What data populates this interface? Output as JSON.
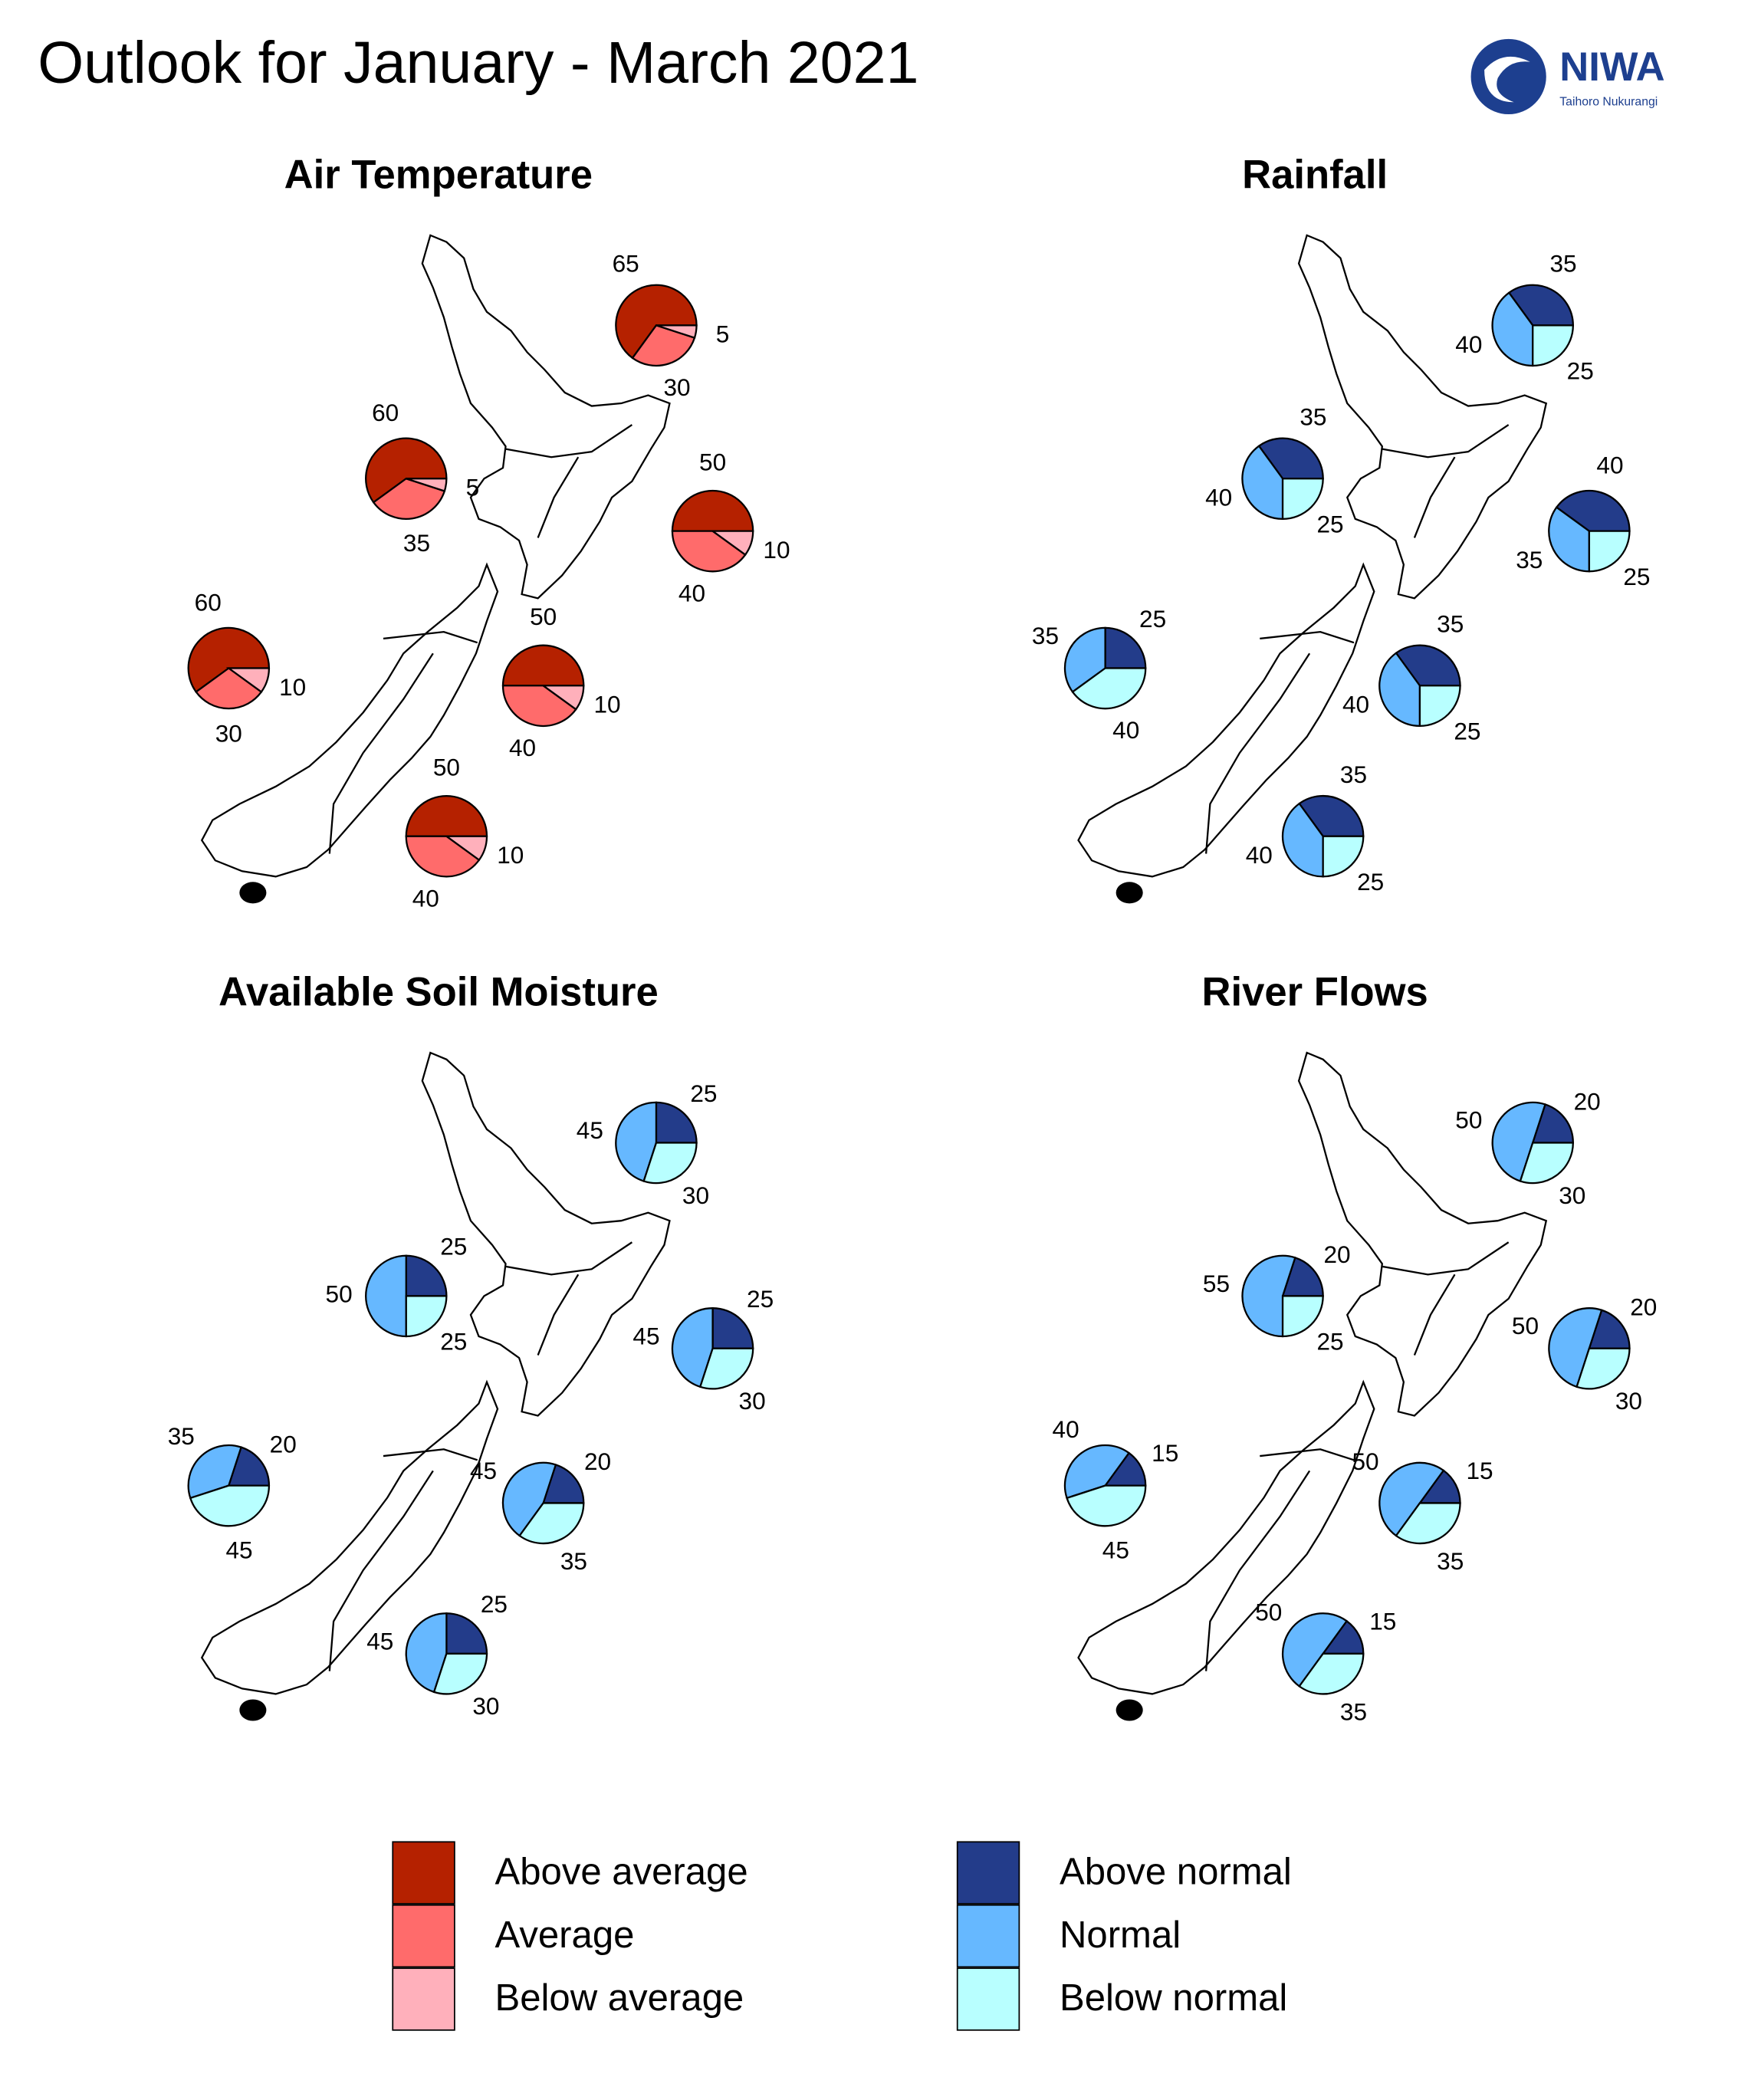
{
  "title": "Outlook for January - March 2021",
  "logo": {
    "name": "NIWA",
    "tagline": "Taihoro Nukurangi"
  },
  "legend": [
    {
      "name": "Above average",
      "color": "#b52100"
    },
    {
      "name": "Average",
      "color": "#ff6b6b"
    },
    {
      "name": "Below average",
      "color": "#ffb0bb"
    },
    {
      "name": "Above normal",
      "color": "#233c8a"
    },
    {
      "name": "Normal",
      "color": "#66b8ff"
    },
    {
      "name": "Below normal",
      "color": "#b8ffff"
    }
  ],
  "chart_data": [
    {
      "type": "pie",
      "title": "Air Temperature",
      "colors": [
        "#b52100",
        "#ff6b6b",
        "#ffb0bb"
      ],
      "pies": [
        {
          "values": [
            65,
            30,
            5
          ]
        },
        {
          "values": [
            60,
            35,
            5
          ]
        },
        {
          "values": [
            50,
            40,
            10
          ]
        },
        {
          "values": [
            60,
            30,
            10
          ]
        },
        {
          "values": [
            50,
            40,
            10
          ]
        },
        {
          "values": [
            50,
            40,
            10
          ]
        }
      ]
    },
    {
      "type": "pie",
      "title": "Rainfall",
      "colors": [
        "#233c8a",
        "#66b8ff",
        "#b8ffff"
      ],
      "pies": [
        {
          "values": [
            35,
            40,
            25
          ]
        },
        {
          "values": [
            35,
            40,
            25
          ]
        },
        {
          "values": [
            40,
            35,
            25
          ]
        },
        {
          "values": [
            25,
            35,
            40
          ]
        },
        {
          "values": [
            35,
            40,
            25
          ]
        },
        {
          "values": [
            35,
            40,
            25
          ]
        }
      ]
    },
    {
      "type": "pie",
      "title": "Available Soil Moisture",
      "colors": [
        "#233c8a",
        "#66b8ff",
        "#b8ffff"
      ],
      "pies": [
        {
          "values": [
            25,
            45,
            30
          ]
        },
        {
          "values": [
            25,
            50,
            25
          ]
        },
        {
          "values": [
            25,
            45,
            30
          ]
        },
        {
          "values": [
            20,
            35,
            45
          ]
        },
        {
          "values": [
            20,
            45,
            35
          ]
        },
        {
          "values": [
            25,
            45,
            30
          ]
        }
      ]
    },
    {
      "type": "pie",
      "title": "River Flows",
      "colors": [
        "#233c8a",
        "#66b8ff",
        "#b8ffff"
      ],
      "pies": [
        {
          "values": [
            20,
            50,
            30
          ]
        },
        {
          "values": [
            20,
            55,
            25
          ]
        },
        {
          "values": [
            20,
            50,
            30
          ]
        },
        {
          "values": [
            15,
            40,
            45
          ]
        },
        {
          "values": [
            15,
            50,
            35
          ]
        },
        {
          "values": [
            15,
            50,
            35
          ]
        }
      ]
    }
  ]
}
